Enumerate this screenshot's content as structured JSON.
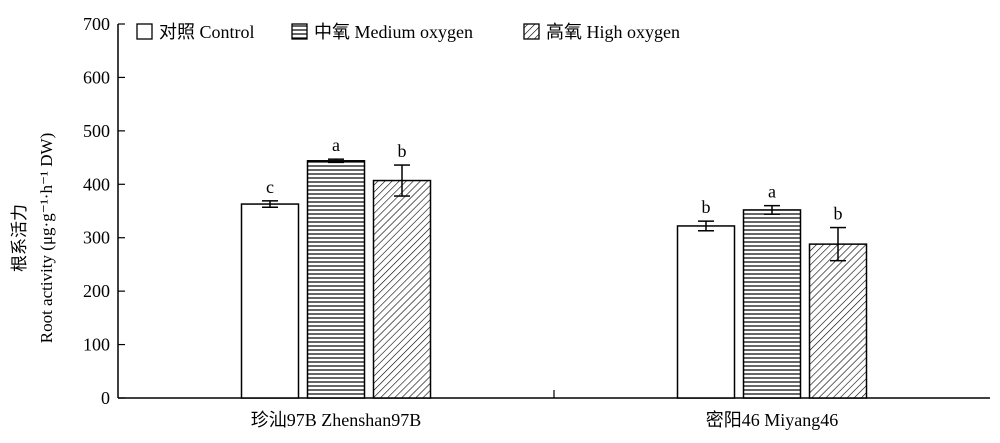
{
  "chart_data": {
    "type": "bar",
    "title": "",
    "xlabel": "",
    "ylabel_lines": [
      "根系活力",
      "Root activity (μg·g⁻¹·h⁻¹ DW)"
    ],
    "ylim": [
      0,
      700
    ],
    "yticks": [
      0,
      100,
      200,
      300,
      400,
      500,
      600,
      700
    ],
    "categories": [
      "珍汕97B Zhenshan97B",
      "密阳46 Miyang46"
    ],
    "series": [
      {
        "name": "对照 Control",
        "fill": "none",
        "values": [
          363,
          322
        ],
        "errors": [
          6,
          9
        ],
        "letters": [
          "c",
          "b"
        ]
      },
      {
        "name": "中氧 Medium oxygen",
        "fill": "horizontal",
        "values": [
          444,
          352
        ],
        "errors": [
          3,
          8
        ],
        "letters": [
          "a",
          "a"
        ]
      },
      {
        "name": "高氧 High oxygen",
        "fill": "diagonal",
        "values": [
          407,
          288
        ],
        "errors": [
          29,
          31
        ],
        "letters": [
          "b",
          "b"
        ]
      }
    ],
    "legend_position": "top",
    "grid": false
  }
}
